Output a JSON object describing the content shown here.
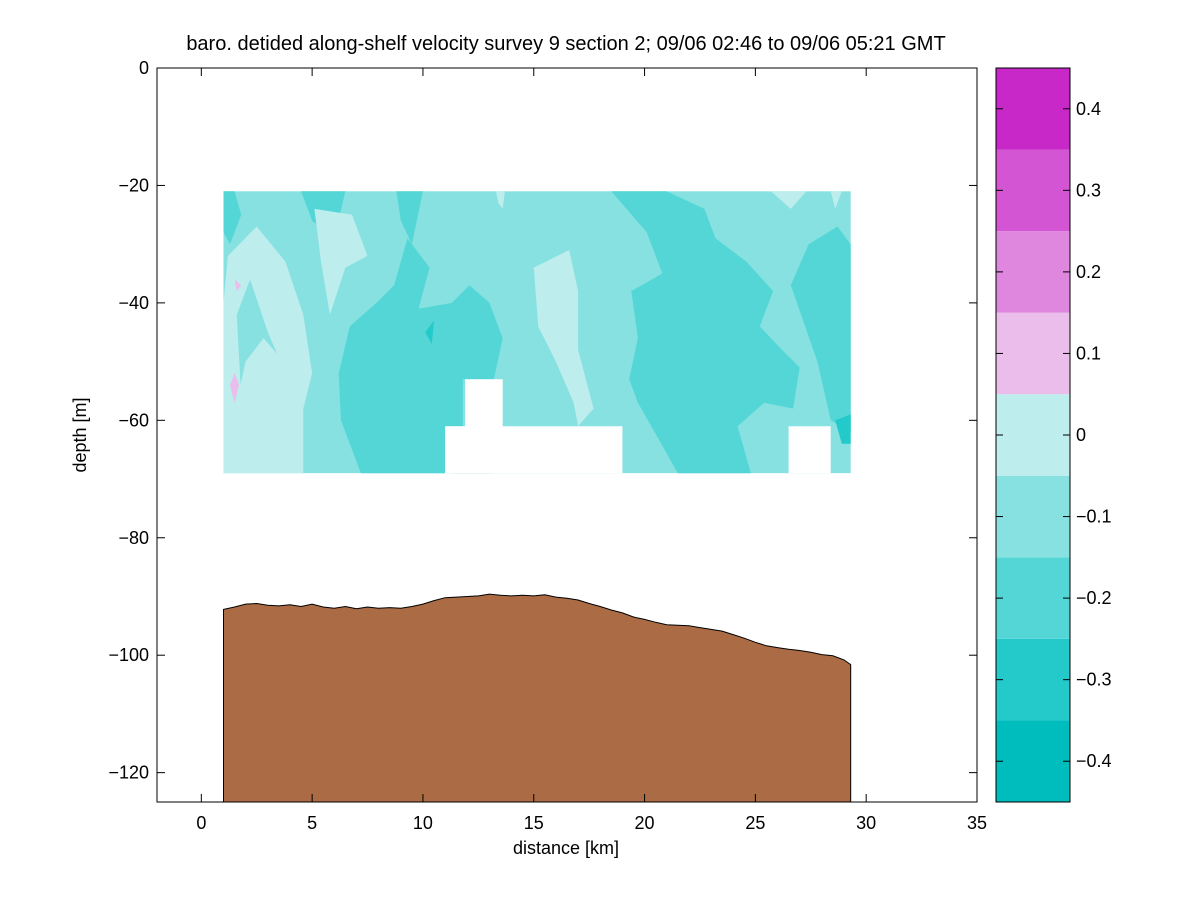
{
  "chart_data": {
    "type": "contour",
    "title": "baro. detided along-shelf velocity survey 9 section 2; 09/06 02:46 to 09/06 05:21 GMT",
    "xlabel": "distance [km]",
    "ylabel": "depth [m]",
    "xlim": [
      -2,
      35
    ],
    "ylim": [
      -125,
      0
    ],
    "xticks": [
      0,
      5,
      10,
      15,
      20,
      25,
      30,
      35
    ],
    "yticks": [
      0,
      -20,
      -40,
      -60,
      -80,
      -100,
      -120
    ],
    "data_extent": {
      "x": [
        1,
        29.3
      ],
      "depth": [
        -21,
        -69
      ]
    },
    "colorbar": {
      "range": [
        -0.45,
        0.45
      ],
      "levels": [
        -0.45,
        -0.35,
        -0.25,
        -0.15,
        -0.05,
        0.05,
        0.15,
        0.25,
        0.35,
        0.45
      ],
      "ticks": [
        -0.4,
        -0.3,
        -0.2,
        -0.1,
        0,
        0.1,
        0.2,
        0.3,
        0.4
      ],
      "tick_labels": [
        "−0.4",
        "−0.3",
        "−0.2",
        "−0.1",
        "0",
        "0.1",
        "0.2",
        "0.3",
        "0.4"
      ],
      "colors": [
        "#00bdbd",
        "#24c9c9",
        "#55d6d6",
        "#87e1e1",
        "#bdeded",
        "#ebbdeb",
        "#df87df",
        "#d355d3",
        "#c928c9",
        "#bd00bd"
      ]
    },
    "velocity_patches": [
      {
        "level": -0.15,
        "pts": [
          [
            1,
            -21
          ],
          [
            1.5,
            -21
          ],
          [
            1.8,
            -25
          ],
          [
            1.3,
            -30
          ],
          [
            1,
            -28
          ]
        ]
      },
      {
        "level": -0.15,
        "pts": [
          [
            4.5,
            -21
          ],
          [
            6.5,
            -21
          ],
          [
            6,
            -29
          ],
          [
            5,
            -26
          ]
        ]
      },
      {
        "level": -0.15,
        "pts": [
          [
            8.8,
            -21
          ],
          [
            10,
            -21
          ],
          [
            9.5,
            -30
          ],
          [
            9,
            -26
          ]
        ]
      },
      {
        "level": 0.05,
        "pts": [
          [
            1,
            -40
          ],
          [
            1.2,
            -32
          ],
          [
            2.5,
            -27
          ],
          [
            3.8,
            -33
          ],
          [
            4.6,
            -42
          ],
          [
            5,
            -52
          ],
          [
            4.6,
            -58
          ],
          [
            3.8,
            -52
          ],
          [
            3,
            -45
          ],
          [
            2.2,
            -36
          ],
          [
            1.6,
            -42
          ],
          [
            1.8,
            -56
          ],
          [
            1.3,
            -66
          ],
          [
            1,
            -69
          ]
        ]
      },
      {
        "level": 0.05,
        "pts": [
          [
            2.8,
            -46
          ],
          [
            3.5,
            -49
          ],
          [
            4.6,
            -57
          ],
          [
            4.6,
            -69
          ],
          [
            1,
            -69
          ],
          [
            1.4,
            -60
          ],
          [
            2,
            -50
          ]
        ]
      },
      {
        "level": 0.05,
        "pts": [
          [
            5.1,
            -24
          ],
          [
            6.8,
            -25
          ],
          [
            7.5,
            -32
          ],
          [
            6.5,
            -34
          ],
          [
            5.8,
            -42
          ],
          [
            5.4,
            -33
          ]
        ]
      },
      {
        "level": 0.05,
        "pts": [
          [
            13.3,
            -21
          ],
          [
            13.7,
            -21
          ],
          [
            13.6,
            -24
          ],
          [
            13.4,
            -23
          ]
        ]
      },
      {
        "level": 0.05,
        "pts": [
          [
            15,
            -34
          ],
          [
            16.6,
            -31
          ],
          [
            17,
            -38
          ],
          [
            17,
            -48
          ],
          [
            17.7,
            -58
          ],
          [
            17,
            -61
          ],
          [
            16.8,
            -57
          ],
          [
            16,
            -50
          ],
          [
            15.2,
            -44
          ]
        ]
      },
      {
        "level": 0.05,
        "pts": [
          [
            25.7,
            -21
          ],
          [
            27.3,
            -21
          ],
          [
            26.6,
            -24
          ]
        ]
      },
      {
        "level": 0.05,
        "pts": [
          [
            28.4,
            -21
          ],
          [
            28.9,
            -21
          ],
          [
            28.6,
            -24
          ]
        ]
      },
      {
        "level": 0.15,
        "pts": [
          [
            1.5,
            -52
          ],
          [
            1.7,
            -54
          ],
          [
            1.5,
            -57
          ],
          [
            1.3,
            -54
          ]
        ]
      },
      {
        "level": 0.15,
        "pts": [
          [
            1.5,
            -36
          ],
          [
            1.8,
            -37
          ],
          [
            1.6,
            -38
          ]
        ]
      },
      {
        "level": -0.15,
        "pts": [
          [
            7.9,
            -40
          ],
          [
            8.7,
            -37
          ],
          [
            9.3,
            -29
          ],
          [
            10.3,
            -34
          ],
          [
            9.8,
            -41
          ],
          [
            11.3,
            -40
          ],
          [
            12.1,
            -37
          ],
          [
            13,
            -40
          ],
          [
            13.6,
            -46
          ],
          [
            13.2,
            -53
          ],
          [
            11.8,
            -53
          ],
          [
            11.8,
            -61
          ],
          [
            11,
            -61
          ],
          [
            11,
            -69
          ],
          [
            7.2,
            -69
          ],
          [
            6.3,
            -60
          ],
          [
            6.2,
            -52
          ],
          [
            6.7,
            -44
          ]
        ]
      },
      {
        "level": -0.15,
        "pts": [
          [
            18.5,
            -21
          ],
          [
            21,
            -21
          ],
          [
            22.7,
            -24
          ],
          [
            23.2,
            -29
          ],
          [
            24.6,
            -33
          ],
          [
            25.8,
            -38
          ],
          [
            25.2,
            -44
          ],
          [
            26.2,
            -48
          ],
          [
            27,
            -51
          ],
          [
            26.7,
            -58
          ],
          [
            25.4,
            -57
          ],
          [
            24.2,
            -61
          ],
          [
            24.8,
            -69
          ],
          [
            21.5,
            -69
          ],
          [
            20.6,
            -63
          ],
          [
            19.7,
            -57
          ],
          [
            19.3,
            -53
          ],
          [
            19.7,
            -46
          ],
          [
            19.4,
            -38
          ],
          [
            20.8,
            -35
          ],
          [
            20.1,
            -28
          ]
        ]
      },
      {
        "level": -0.15,
        "pts": [
          [
            26.6,
            -37
          ],
          [
            27.4,
            -30
          ],
          [
            28.7,
            -27
          ],
          [
            29.3,
            -30
          ],
          [
            29.3,
            -62
          ],
          [
            28.4,
            -60
          ],
          [
            27.8,
            -50
          ]
        ]
      },
      {
        "level": -0.15,
        "pts": [
          [
            11.3,
            -69
          ],
          [
            12.2,
            -66
          ],
          [
            13.1,
            -69
          ]
        ]
      },
      {
        "level": -0.25,
        "pts": [
          [
            28.6,
            -60
          ],
          [
            29.3,
            -59
          ],
          [
            29.3,
            -64
          ],
          [
            28.9,
            -64
          ]
        ]
      },
      {
        "level": -0.25,
        "pts": [
          [
            10.1,
            -45
          ],
          [
            10.5,
            -43
          ],
          [
            10.4,
            -47
          ]
        ]
      }
    ],
    "masked_gaps": [
      {
        "pts": [
          [
            11,
            -69
          ],
          [
            11,
            -61
          ],
          [
            11.9,
            -61
          ],
          [
            11.9,
            -53
          ],
          [
            13.6,
            -53
          ],
          [
            13.6,
            -61
          ],
          [
            19,
            -61
          ],
          [
            19,
            -69
          ]
        ]
      },
      {
        "pts": [
          [
            26.5,
            -69
          ],
          [
            26.5,
            -61
          ],
          [
            28.4,
            -61
          ],
          [
            28.4,
            -69
          ]
        ]
      }
    ],
    "bathymetry": {
      "color": "#aa6b45",
      "x": [
        1,
        1.5,
        2,
        2.5,
        3,
        3.5,
        4,
        4.5,
        5,
        5.5,
        6,
        6.5,
        7,
        7.5,
        8,
        8.5,
        9,
        9.5,
        10,
        10.5,
        11,
        11.5,
        12,
        12.5,
        13,
        13.5,
        14,
        14.5,
        15,
        15.5,
        16,
        16.5,
        17,
        17.5,
        18,
        18.5,
        19,
        19.5,
        20,
        20.5,
        21,
        21.5,
        22,
        22.5,
        23,
        23.5,
        24,
        24.5,
        25,
        25.5,
        26,
        26.5,
        27,
        27.5,
        28,
        28.5,
        29,
        29.3
      ],
      "depth": [
        -92.2,
        -91.8,
        -91.3,
        -91.2,
        -91.5,
        -91.6,
        -91.4,
        -91.7,
        -91.3,
        -91.8,
        -92.0,
        -91.7,
        -92.1,
        -91.8,
        -92.0,
        -91.9,
        -92.0,
        -91.7,
        -91.3,
        -90.7,
        -90.2,
        -90.1,
        -90.0,
        -89.9,
        -89.6,
        -89.8,
        -89.9,
        -89.8,
        -89.9,
        -89.7,
        -90.1,
        -90.3,
        -90.6,
        -91.2,
        -91.7,
        -92.3,
        -92.8,
        -93.5,
        -93.9,
        -94.4,
        -94.8,
        -94.9,
        -95.0,
        -95.3,
        -95.6,
        -95.9,
        -96.5,
        -97.1,
        -97.8,
        -98.4,
        -98.7,
        -99.0,
        -99.2,
        -99.5,
        -99.9,
        -100.1,
        -100.8,
        -101.6
      ]
    }
  }
}
